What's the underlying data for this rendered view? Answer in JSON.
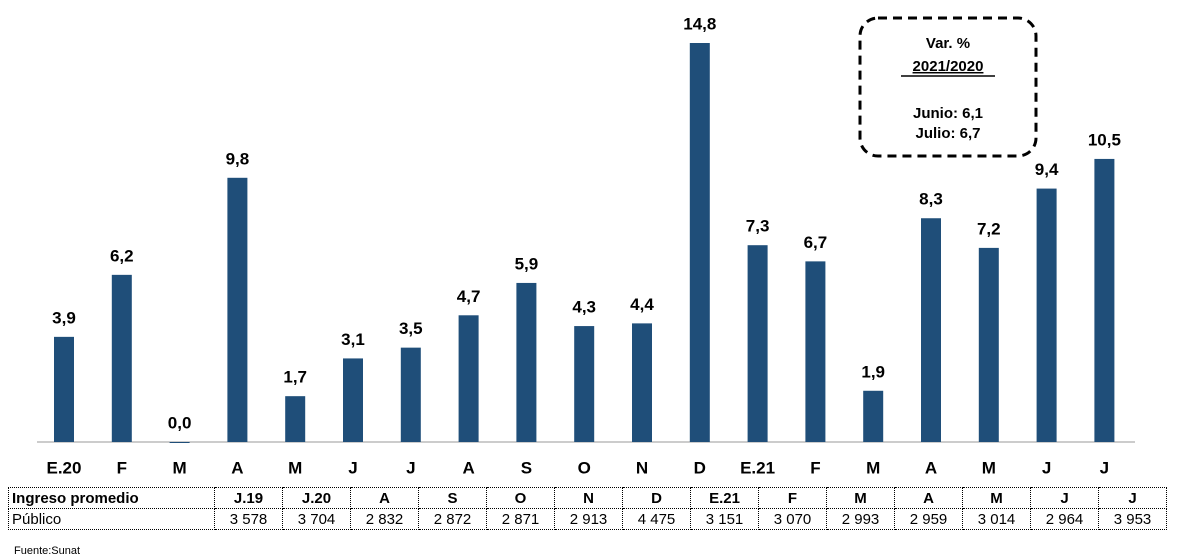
{
  "chart_data": {
    "type": "bar",
    "categories": [
      "E.20",
      "F",
      "M",
      "A",
      "M",
      "J",
      "J",
      "A",
      "S",
      "O",
      "N",
      "D",
      "E.21",
      "F",
      "M",
      "A",
      "M",
      "J",
      "J"
    ],
    "values": [
      3.9,
      6.2,
      0.0,
      9.8,
      1.7,
      3.1,
      3.5,
      4.7,
      5.9,
      4.3,
      4.4,
      14.8,
      7.3,
      6.7,
      1.9,
      8.3,
      7.2,
      9.4,
      10.5
    ],
    "value_labels": [
      "3,9",
      "6,2",
      "0,0",
      "9,8",
      "1,7",
      "3,1",
      "3,5",
      "4,7",
      "5,9",
      "4,3",
      "4,4",
      "14,8",
      "7,3",
      "6,7",
      "1,9",
      "8,3",
      "7,2",
      "9,4",
      "10,5"
    ],
    "color": "#1f4e79",
    "annotations": [
      "Var. %",
      "2021/2020",
      "Junio: 6,1",
      "Julio: 6,7"
    ]
  },
  "table": {
    "header": [
      "Ingreso promedio",
      "J.19",
      "J.20",
      "A",
      "S",
      "O",
      "N",
      "D",
      "E.21",
      "F",
      "M",
      "A",
      "M",
      "J",
      "J"
    ],
    "rows": [
      [
        "Público",
        "3 578",
        "3 704",
        "2 832",
        "2 872",
        "2 871",
        "2 913",
        "4 475",
        "3 151",
        "3 070",
        "2 993",
        "2 959",
        "3 014",
        "2 964",
        "3 953"
      ]
    ]
  },
  "source": "Fuente:Sunat"
}
